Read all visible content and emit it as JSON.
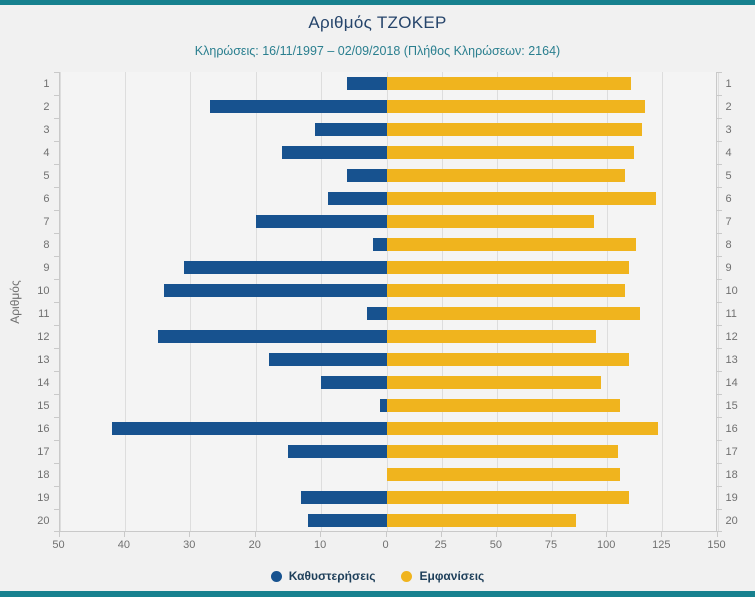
{
  "page": {
    "accent_color": "#17818f",
    "background_color": "#f1f1f1"
  },
  "chart_data": {
    "type": "bar",
    "orientation": "horizontal-diverging",
    "title": "Αριθμός ΤΖΟΚΕΡ",
    "subtitle": "Κληρώσεις: 16/11/1997 – 02/09/2018 (Πλήθος Κληρώσεων: 2164)",
    "ylabel": "Αριθμός",
    "grid": true,
    "legend_position": "bottom",
    "categories": [
      1,
      2,
      3,
      4,
      5,
      6,
      7,
      8,
      9,
      10,
      11,
      12,
      13,
      14,
      15,
      16,
      17,
      18,
      19,
      20
    ],
    "series": [
      {
        "name": "Καθυστερήσεις",
        "color": "#17528f",
        "axis": "left",
        "values": [
          6,
          27,
          11,
          16,
          6,
          9,
          20,
          2,
          31,
          34,
          3,
          35,
          18,
          10,
          1,
          42,
          15,
          0,
          13,
          12
        ]
      },
      {
        "name": "Εμφανίσεις",
        "color": "#f0b41e",
        "axis": "right",
        "values": [
          111,
          117,
          116,
          112,
          108,
          122,
          94,
          113,
          110,
          108,
          115,
          95,
          110,
          97,
          106,
          123,
          105,
          106,
          110,
          86
        ]
      }
    ],
    "x_axis": {
      "left_ticks": [
        50,
        40,
        30,
        20,
        10
      ],
      "right_ticks": [
        0,
        25,
        50,
        75,
        100,
        125,
        150
      ],
      "left_max": 50,
      "right_max": 150,
      "zero_fraction": 0.497
    }
  }
}
